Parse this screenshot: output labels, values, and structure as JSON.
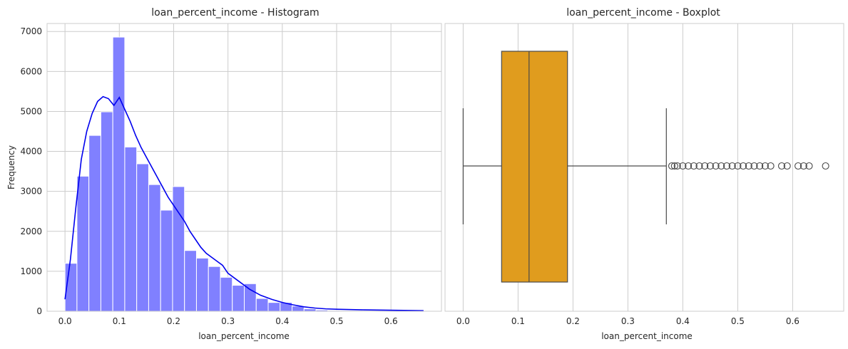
{
  "colors": {
    "hist_bar": "#8080ff",
    "kde_line": "#0000ee",
    "box_fill": "#e09c1e",
    "box_line": "#4a4a4a",
    "grid": "#cccccc",
    "spine": "#cccccc"
  },
  "chart_data": [
    {
      "type": "bar",
      "title": "loan_percent_income - Histogram",
      "xlabel": "loan_percent_income",
      "ylabel": "Frequency",
      "xlim": [
        -0.033,
        0.693
      ],
      "ylim": [
        0,
        7200
      ],
      "xticks": [
        0.0,
        0.1,
        0.2,
        0.3,
        0.4,
        0.5,
        0.6
      ],
      "xtick_labels": [
        "0.0",
        "0.1",
        "0.2",
        "0.3",
        "0.4",
        "0.5",
        "0.6"
      ],
      "yticks": [
        0,
        1000,
        2000,
        3000,
        4000,
        5000,
        6000,
        7000
      ],
      "ytick_labels": [
        "0",
        "1000",
        "2000",
        "3000",
        "4000",
        "5000",
        "6000",
        "7000"
      ],
      "grid": true,
      "bin_start": 0.0,
      "bin_width": 0.022,
      "values": [
        1200,
        3380,
        4400,
        4990,
        6860,
        4110,
        3690,
        3170,
        2530,
        3120,
        1520,
        1330,
        1120,
        850,
        650,
        690,
        320,
        220,
        220,
        130,
        60,
        30,
        20,
        10,
        10,
        5,
        5,
        3,
        2,
        2
      ],
      "kde": {
        "x": [
          0.0,
          0.01,
          0.02,
          0.03,
          0.04,
          0.05,
          0.06,
          0.07,
          0.08,
          0.09,
          0.1,
          0.11,
          0.12,
          0.13,
          0.14,
          0.15,
          0.16,
          0.17,
          0.18,
          0.19,
          0.2,
          0.21,
          0.22,
          0.23,
          0.24,
          0.25,
          0.26,
          0.27,
          0.28,
          0.29,
          0.3,
          0.32,
          0.34,
          0.36,
          0.38,
          0.4,
          0.42,
          0.44,
          0.46,
          0.48,
          0.5,
          0.55,
          0.6,
          0.66
        ],
        "y": [
          300,
          1300,
          2600,
          3800,
          4500,
          4950,
          5250,
          5370,
          5320,
          5150,
          5350,
          5050,
          4750,
          4400,
          4100,
          3850,
          3600,
          3350,
          3100,
          2850,
          2650,
          2450,
          2250,
          2000,
          1800,
          1600,
          1450,
          1350,
          1250,
          1150,
          950,
          750,
          550,
          400,
          300,
          220,
          160,
          110,
          80,
          60,
          50,
          35,
          25,
          15
        ]
      }
    },
    {
      "type": "box",
      "title": "loan_percent_income - Boxplot",
      "xlabel": "loan_percent_income",
      "xlim": [
        -0.033,
        0.693
      ],
      "xticks": [
        0.0,
        0.1,
        0.2,
        0.3,
        0.4,
        0.5,
        0.6
      ],
      "xtick_labels": [
        "0.0",
        "0.1",
        "0.2",
        "0.3",
        "0.4",
        "0.5",
        "0.6"
      ],
      "grid": true,
      "min": 0.0,
      "q1": 0.07,
      "median": 0.12,
      "q3": 0.19,
      "max": 0.37,
      "outliers": [
        0.38,
        0.385,
        0.39,
        0.4,
        0.41,
        0.42,
        0.43,
        0.44,
        0.45,
        0.46,
        0.47,
        0.48,
        0.49,
        0.5,
        0.51,
        0.52,
        0.53,
        0.54,
        0.55,
        0.56,
        0.58,
        0.59,
        0.61,
        0.62,
        0.63,
        0.66
      ]
    }
  ]
}
